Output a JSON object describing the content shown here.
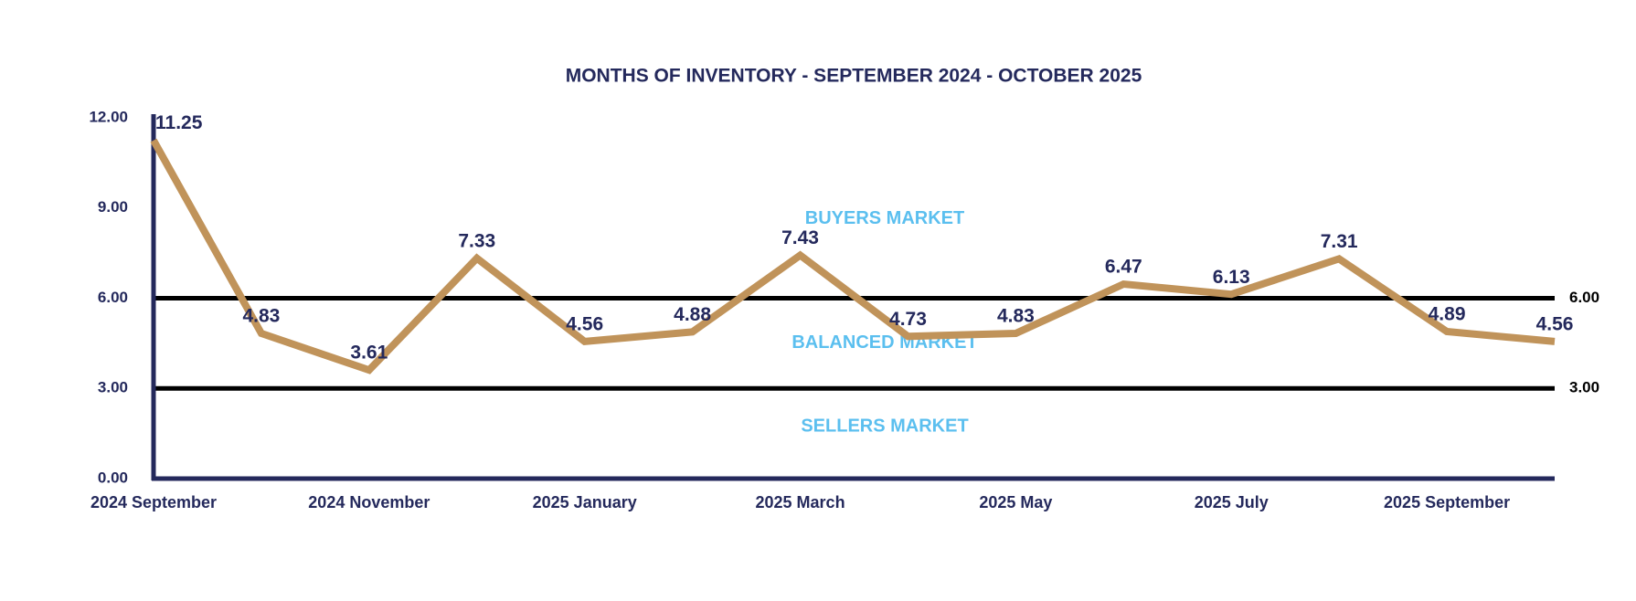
{
  "chart_data": {
    "type": "line",
    "title": "MONTHS OF INVENTORY - SEPTEMBER 2024 - OCTOBER 2025",
    "categories": [
      "2024 September",
      null,
      "2024 November",
      null,
      "2025 January",
      null,
      "2025 March",
      null,
      "2025 May",
      null,
      "2025 July",
      null,
      "2025 September",
      null
    ],
    "series": [
      {
        "name": "Months of Inventory",
        "color": "#c0935a",
        "values": [
          11.25,
          4.83,
          3.61,
          7.33,
          4.56,
          4.88,
          7.43,
          4.73,
          4.83,
          6.47,
          6.13,
          7.31,
          4.89,
          4.56
        ]
      }
    ],
    "ylim": [
      0,
      12
    ],
    "yticks": [
      {
        "value": 0,
        "label": "0.00"
      },
      {
        "value": 3,
        "label": "3.00"
      },
      {
        "value": 6,
        "label": "6.00"
      },
      {
        "value": 9,
        "label": "9.00"
      },
      {
        "value": 12,
        "label": "12.00"
      }
    ],
    "reference_lines": [
      {
        "value": 6,
        "label": "6.00"
      },
      {
        "value": 3,
        "label": "3.00"
      }
    ],
    "annotations": [
      "BUYERS MARKET",
      "BALANCED MARKET",
      "SELLERS MARKET"
    ]
  }
}
